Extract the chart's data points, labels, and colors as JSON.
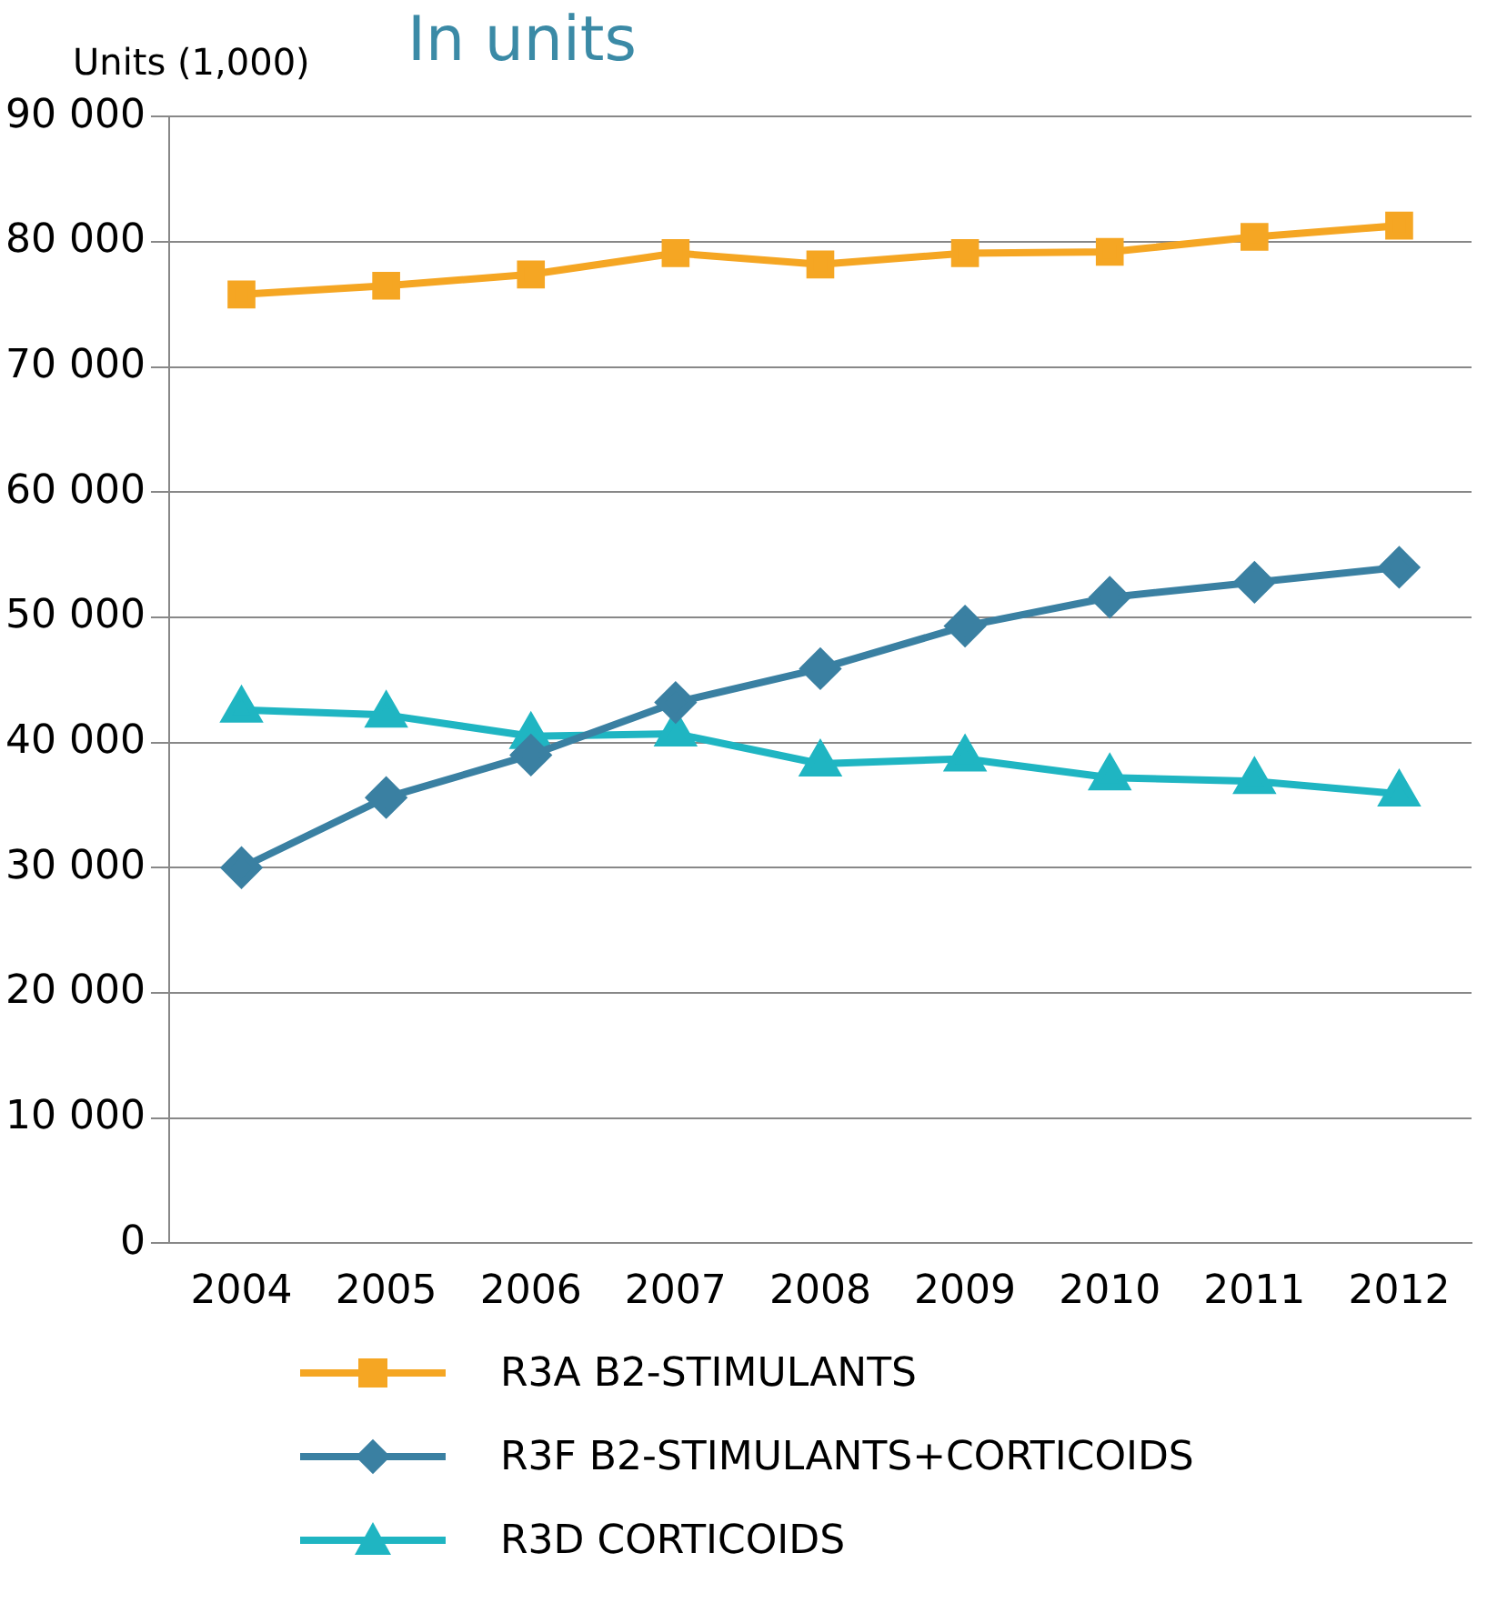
{
  "chart_data": {
    "type": "line",
    "title": "In units",
    "ylabel": "Units (1,000)",
    "categories": [
      "2004",
      "2005",
      "2006",
      "2007",
      "2008",
      "2009",
      "2010",
      "2011",
      "2012"
    ],
    "series": [
      {
        "name": "R3A B2-STIMULANTS",
        "color": "#f5a623",
        "marker": "square",
        "values": [
          75800,
          76500,
          77400,
          79100,
          78200,
          79100,
          79200,
          80400,
          81300
        ]
      },
      {
        "name": "R3F B2-STIMULANTS+CORTICOIDS",
        "color": "#3a80a2",
        "marker": "diamond",
        "values": [
          30000,
          35600,
          39000,
          43200,
          45900,
          49300,
          51600,
          52800,
          54000
        ]
      },
      {
        "name": "R3D CORTICOIDS",
        "color": "#1fb5c2",
        "marker": "triangle",
        "values": [
          42600,
          42200,
          40500,
          40700,
          38300,
          38700,
          37200,
          36900,
          35900
        ]
      }
    ],
    "ylim": [
      0,
      90000
    ],
    "yticks": [
      0,
      {
        "value": 10000,
        "label": "10 000"
      },
      {
        "value": 20000,
        "label": "20 000"
      },
      {
        "value": 30000,
        "label": "30 000"
      },
      {
        "value": 40000,
        "label": "40 000"
      },
      {
        "value": 50000,
        "label": "50 000"
      },
      {
        "value": 60000,
        "label": "60 000"
      },
      {
        "value": 70000,
        "label": "70 000"
      },
      {
        "value": 80000,
        "label": "80 000"
      },
      {
        "value": 90000,
        "label": "90 000"
      }
    ],
    "grid": "y",
    "legend": "bottom",
    "line_style": "solid"
  }
}
